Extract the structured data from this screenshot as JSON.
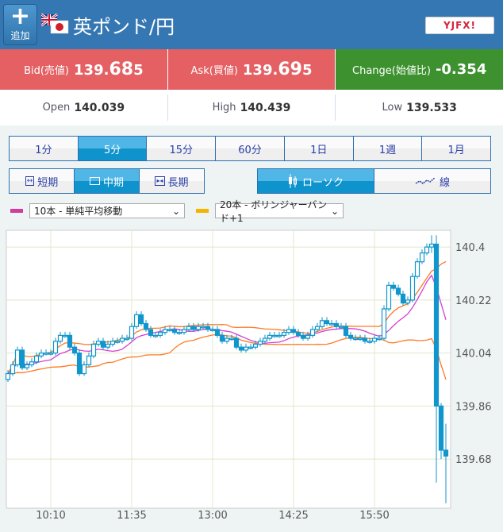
{
  "header": {
    "add_label": "追加",
    "add_icon": "plus-icon",
    "title": "英ポンド/円",
    "logo_text": "YJFX!"
  },
  "quotes": {
    "bid": {
      "label": "Bid(売値)",
      "value_main": "139.",
      "value_big": "68",
      "value_tail": "5"
    },
    "ask": {
      "label": "Ask(買値)",
      "value_main": "139.",
      "value_big": "69",
      "value_tail": "5"
    },
    "change": {
      "label": "Change(始値比)",
      "value": "-0.354"
    }
  },
  "stats": {
    "open": {
      "label": "Open",
      "value": "140.039"
    },
    "high": {
      "label": "High",
      "value": "140.439"
    },
    "low": {
      "label": "Low",
      "value": "139.533"
    }
  },
  "timeframes": [
    "1分",
    "5分",
    "15分",
    "60分",
    "1日",
    "1週",
    "1月"
  ],
  "active_timeframe": "5分",
  "terms": [
    {
      "label": "短期",
      "icon": "expand-arrows-icon"
    },
    {
      "label": "中期",
      "icon": "square-icon"
    },
    {
      "label": "長期",
      "icon": "compress-arrows-icon"
    }
  ],
  "active_term": "中期",
  "chart_types": [
    {
      "label": "ローソク",
      "icon": "candlestick-icon"
    },
    {
      "label": "線",
      "icon": "line-chart-icon"
    }
  ],
  "active_chart_type": "ローソク",
  "indicators": [
    {
      "label": "10本 - 単純平均移動",
      "color": "#d23c9c"
    },
    {
      "label": "20本 - ボリンジャーバンド+1",
      "color": "#f4b400"
    }
  ],
  "colors": {
    "candle": "#1096cc",
    "sma": "#d63fd0",
    "bollinger": "#ff7a24",
    "grid": "#dfe8c8"
  },
  "chart_data": {
    "type": "candlestick",
    "interval_minutes": 5,
    "first_open": 139.95,
    "closes": [
      139.97,
      140.0,
      140.05,
      139.99,
      140.0,
      140.01,
      140.03,
      140.04,
      140.04,
      140.04,
      140.08,
      140.1,
      140.1,
      140.06,
      140.04,
      139.97,
      140.0,
      140.03,
      140.07,
      140.08,
      140.06,
      140.07,
      140.08,
      140.08,
      140.09,
      140.09,
      140.13,
      140.17,
      140.14,
      140.12,
      140.1,
      140.1,
      140.11,
      140.12,
      140.12,
      140.11,
      140.11,
      140.12,
      140.13,
      140.12,
      140.13,
      140.13,
      140.12,
      140.12,
      140.1,
      140.08,
      140.09,
      140.09,
      140.06,
      140.05,
      140.06,
      140.06,
      140.07,
      140.08,
      140.09,
      140.1,
      140.1,
      140.1,
      140.11,
      140.12,
      140.11,
      140.1,
      140.09,
      140.1,
      140.12,
      140.13,
      140.15,
      140.14,
      140.14,
      140.13,
      140.13,
      140.1,
      140.09,
      140.09,
      140.09,
      140.08,
      140.08,
      140.09,
      140.09,
      140.19,
      140.27,
      140.26,
      140.24,
      140.21,
      140.22,
      140.3,
      140.35,
      140.38,
      140.4,
      140.41,
      139.86,
      139.71,
      139.69
    ],
    "last_bars_high": [
      140.44,
      140.44,
      139.87,
      139.8
    ],
    "last_bars_low": [
      140.38,
      139.6,
      139.68,
      139.53
    ],
    "overlays": [
      "SMA 10",
      "Bollinger 20 +1σ"
    ],
    "x_ticks": [
      "10:10",
      "11:35",
      "13:00",
      "14:25",
      "15:50"
    ],
    "y_ticks": [
      "140.4",
      "140.22",
      "140.04",
      "139.86",
      "139.68"
    ],
    "ylim": [
      139.513,
      140.457
    ],
    "grid": true
  }
}
